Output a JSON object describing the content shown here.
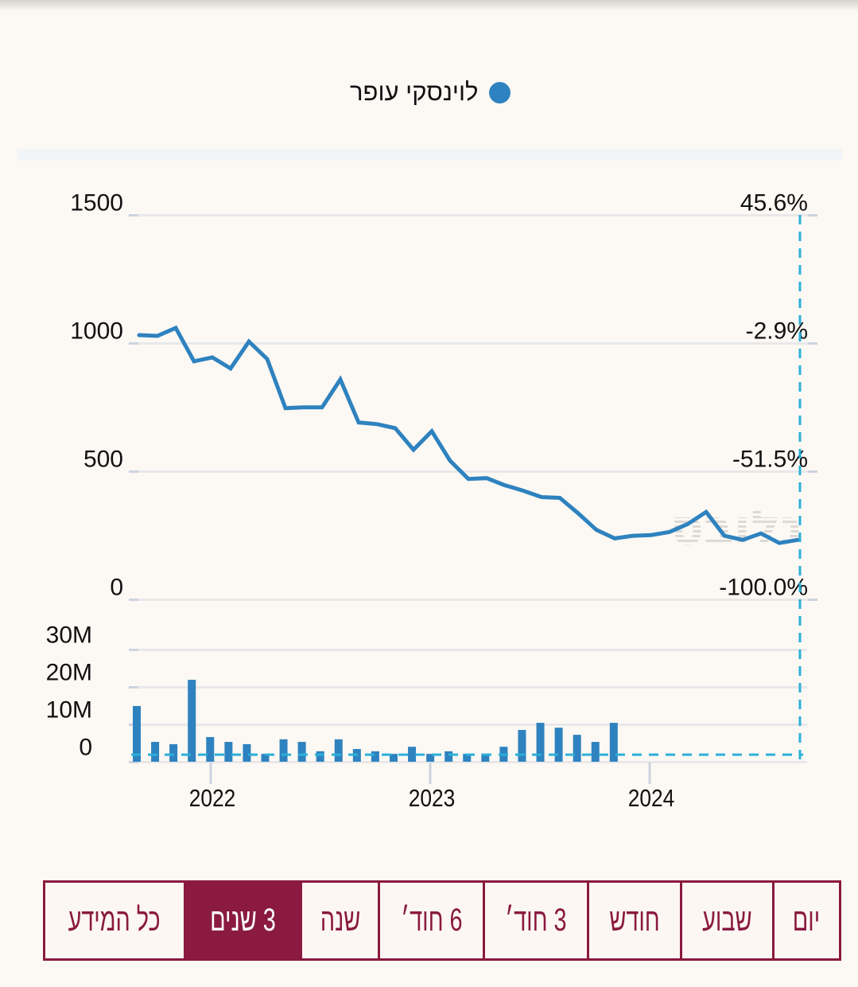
{
  "legend": {
    "label": "לוינסקי עופר",
    "color": "#2e82bf"
  },
  "watermark": {
    "text": "גלובס"
  },
  "chart_data": [
    {
      "type": "line",
      "name": "price",
      "series": [
        {
          "name": "לוינסקי עופר",
          "color": "#2e82bf",
          "values": [
            1031,
            1028,
            1059,
            929,
            944,
            901,
            1006,
            938,
            746,
            749,
            749,
            858,
            690,
            684,
            668,
            584,
            656,
            541,
            470,
            473,
            445,
            424,
            399,
            396,
            336,
            271,
            238,
            248,
            251,
            263,
            294,
            341,
            248,
            232,
            257,
            220,
            232
          ]
        }
      ],
      "ylim": [
        0,
        1500
      ],
      "y_ticks": [
        "1500",
        "1000",
        "500",
        "0"
      ],
      "y_tick_values": [
        1500,
        1000,
        500,
        0
      ],
      "y2_ticks": [
        "45.6%",
        "-2.9%",
        "-51.5%",
        "-100.0%"
      ],
      "grid": true
    },
    {
      "type": "bar",
      "name": "volume",
      "values_millions": [
        14.9,
        5.3,
        4.7,
        21.9,
        6.6,
        5.3,
        4.7,
        2.1,
        6.0,
        5.3,
        2.8,
        6.0,
        3.4,
        2.8,
        2.1,
        4.0,
        2.1,
        2.8,
        2.1,
        2.1,
        4.0,
        8.5,
        10.4,
        9.1,
        7.2,
        5.3,
        10.4
      ],
      "current_value_millions": 1.9,
      "ylim": [
        0,
        30
      ],
      "y_ticks": [
        "30M",
        "20M",
        "10M",
        "0"
      ],
      "y_tick_values": [
        30,
        20,
        10,
        0
      ],
      "x_ticks": [
        "2022",
        "2023",
        "2024"
      ],
      "color": "#2e82bf",
      "grid": true
    }
  ],
  "range_buttons": [
    {
      "label": "כל המידע",
      "active": false
    },
    {
      "label": "3 שנים",
      "active": true
    },
    {
      "label": "שנה",
      "active": false
    },
    {
      "label": "6 חוד׳",
      "active": false
    },
    {
      "label": "3 חוד׳",
      "active": false
    },
    {
      "label": "חודש",
      "active": false
    },
    {
      "label": "שבוע",
      "active": false
    },
    {
      "label": "יום",
      "active": false
    }
  ],
  "colors": {
    "accent": "#8a1a3f",
    "line": "#2e82bf",
    "crosshair": "#2bb0d8"
  }
}
